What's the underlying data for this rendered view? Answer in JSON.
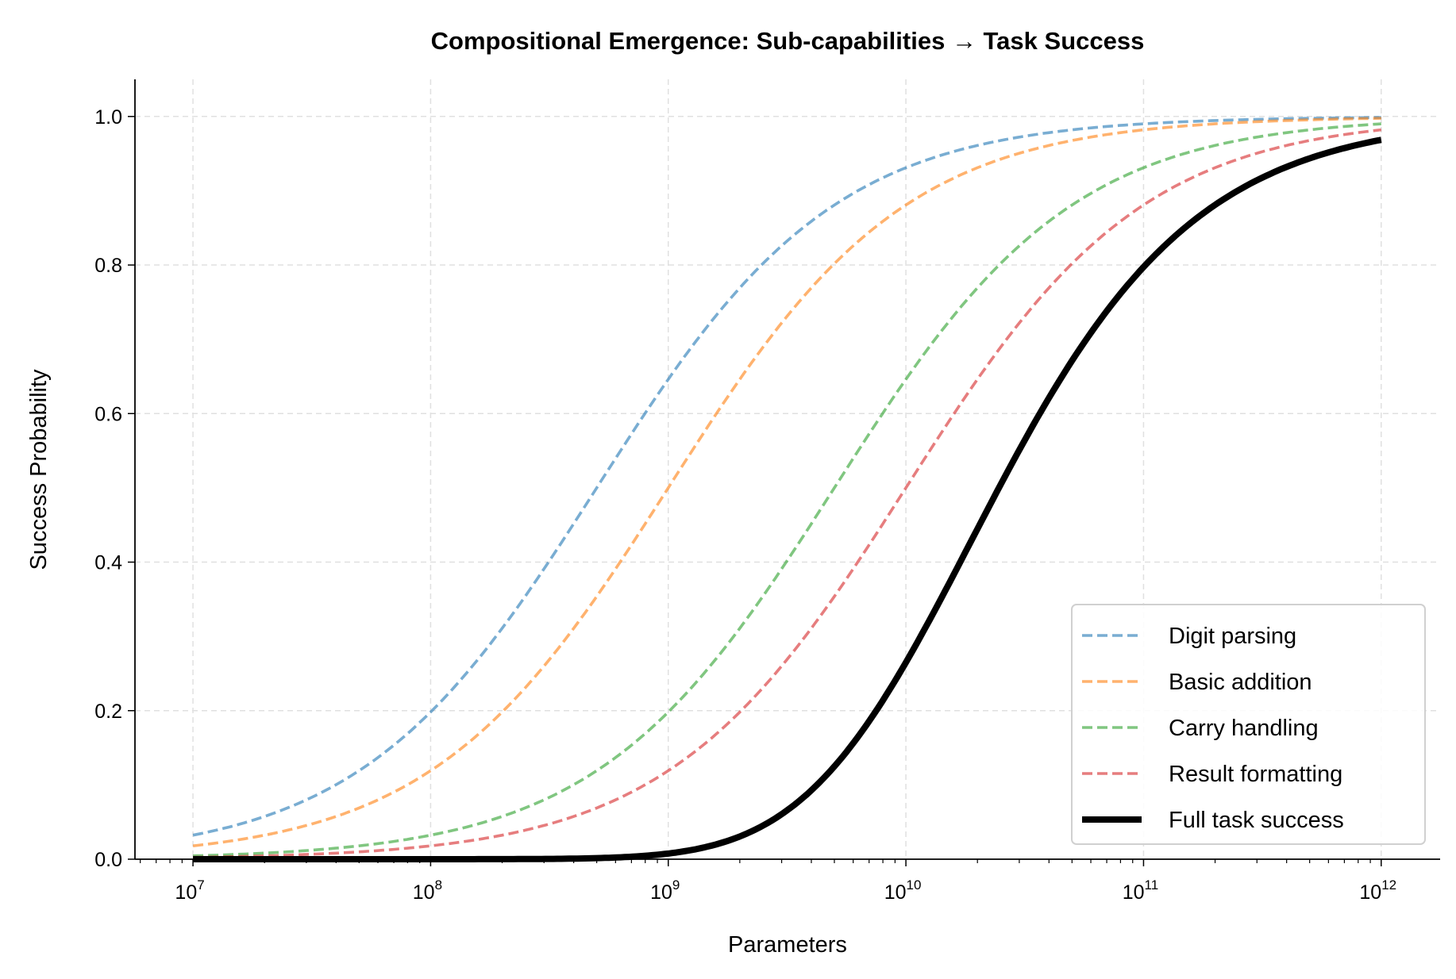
{
  "chart_data": {
    "type": "line",
    "title": "Compositional Emergence: Sub-capabilities → Task Success",
    "xlabel": "Parameters",
    "ylabel": "Success Probability",
    "xscale": "log",
    "xlim": [
      5700000.0,
      1770000000000.0
    ],
    "ylim": [
      0,
      1.05
    ],
    "grid": true,
    "legend_position": "lower-right",
    "x_ticks": [
      {
        "base": "10",
        "exp": "7"
      },
      {
        "base": "10",
        "exp": "8"
      },
      {
        "base": "10",
        "exp": "9"
      },
      {
        "base": "10",
        "exp": "10"
      },
      {
        "base": "10",
        "exp": "11"
      },
      {
        "base": "10",
        "exp": "12"
      }
    ],
    "y_ticks": [
      "0.0",
      "0.2",
      "0.4",
      "0.6",
      "0.8",
      "1.0"
    ],
    "x": [
      10000000.0,
      30000000.0,
      100000000.0,
      300000000.0,
      1000000000.0,
      3000000000.0,
      10000000000.0,
      30000000000.0,
      100000000000.0,
      300000000000.0,
      1000000000000.0
    ],
    "series": [
      {
        "name": "Digit parsing",
        "color": "#1f77b4",
        "style": "dashed",
        "midpoint": 500000000.0,
        "steepness_per_decade": 2,
        "values": [
          0.033,
          0.087,
          0.2,
          0.385,
          0.65,
          0.84,
          0.93,
          0.975,
          0.99,
          0.997,
          0.999
        ]
      },
      {
        "name": "Basic addition",
        "color": "#ff7f0e",
        "style": "dashed",
        "midpoint": 1000000000.0,
        "steepness_per_decade": 2,
        "values": [
          0.018,
          0.048,
          0.119,
          0.27,
          0.5,
          0.72,
          0.88,
          0.95,
          0.982,
          0.994,
          0.998
        ]
      },
      {
        "name": "Carry handling",
        "color": "#2ca02c",
        "style": "dashed",
        "midpoint": 5000000000.0,
        "steepness_per_decade": 2,
        "values": [
          0.004,
          0.01,
          0.024,
          0.06,
          0.2,
          0.4,
          0.65,
          0.84,
          0.93,
          0.975,
          0.99
        ]
      },
      {
        "name": "Result formatting",
        "color": "#d62728",
        "style": "dashed",
        "midpoint": 10000000000.0,
        "steepness_per_decade": 2,
        "values": [
          0.002,
          0.005,
          0.012,
          0.029,
          0.119,
          0.27,
          0.5,
          0.72,
          0.88,
          0.95,
          0.982
        ]
      },
      {
        "name": "Full task success",
        "color": "#000000",
        "style": "solid",
        "values": [
          0.0,
          0.0,
          0.0,
          0.0,
          0.008,
          0.065,
          0.266,
          0.55,
          0.8,
          0.92,
          0.97
        ]
      }
    ]
  }
}
